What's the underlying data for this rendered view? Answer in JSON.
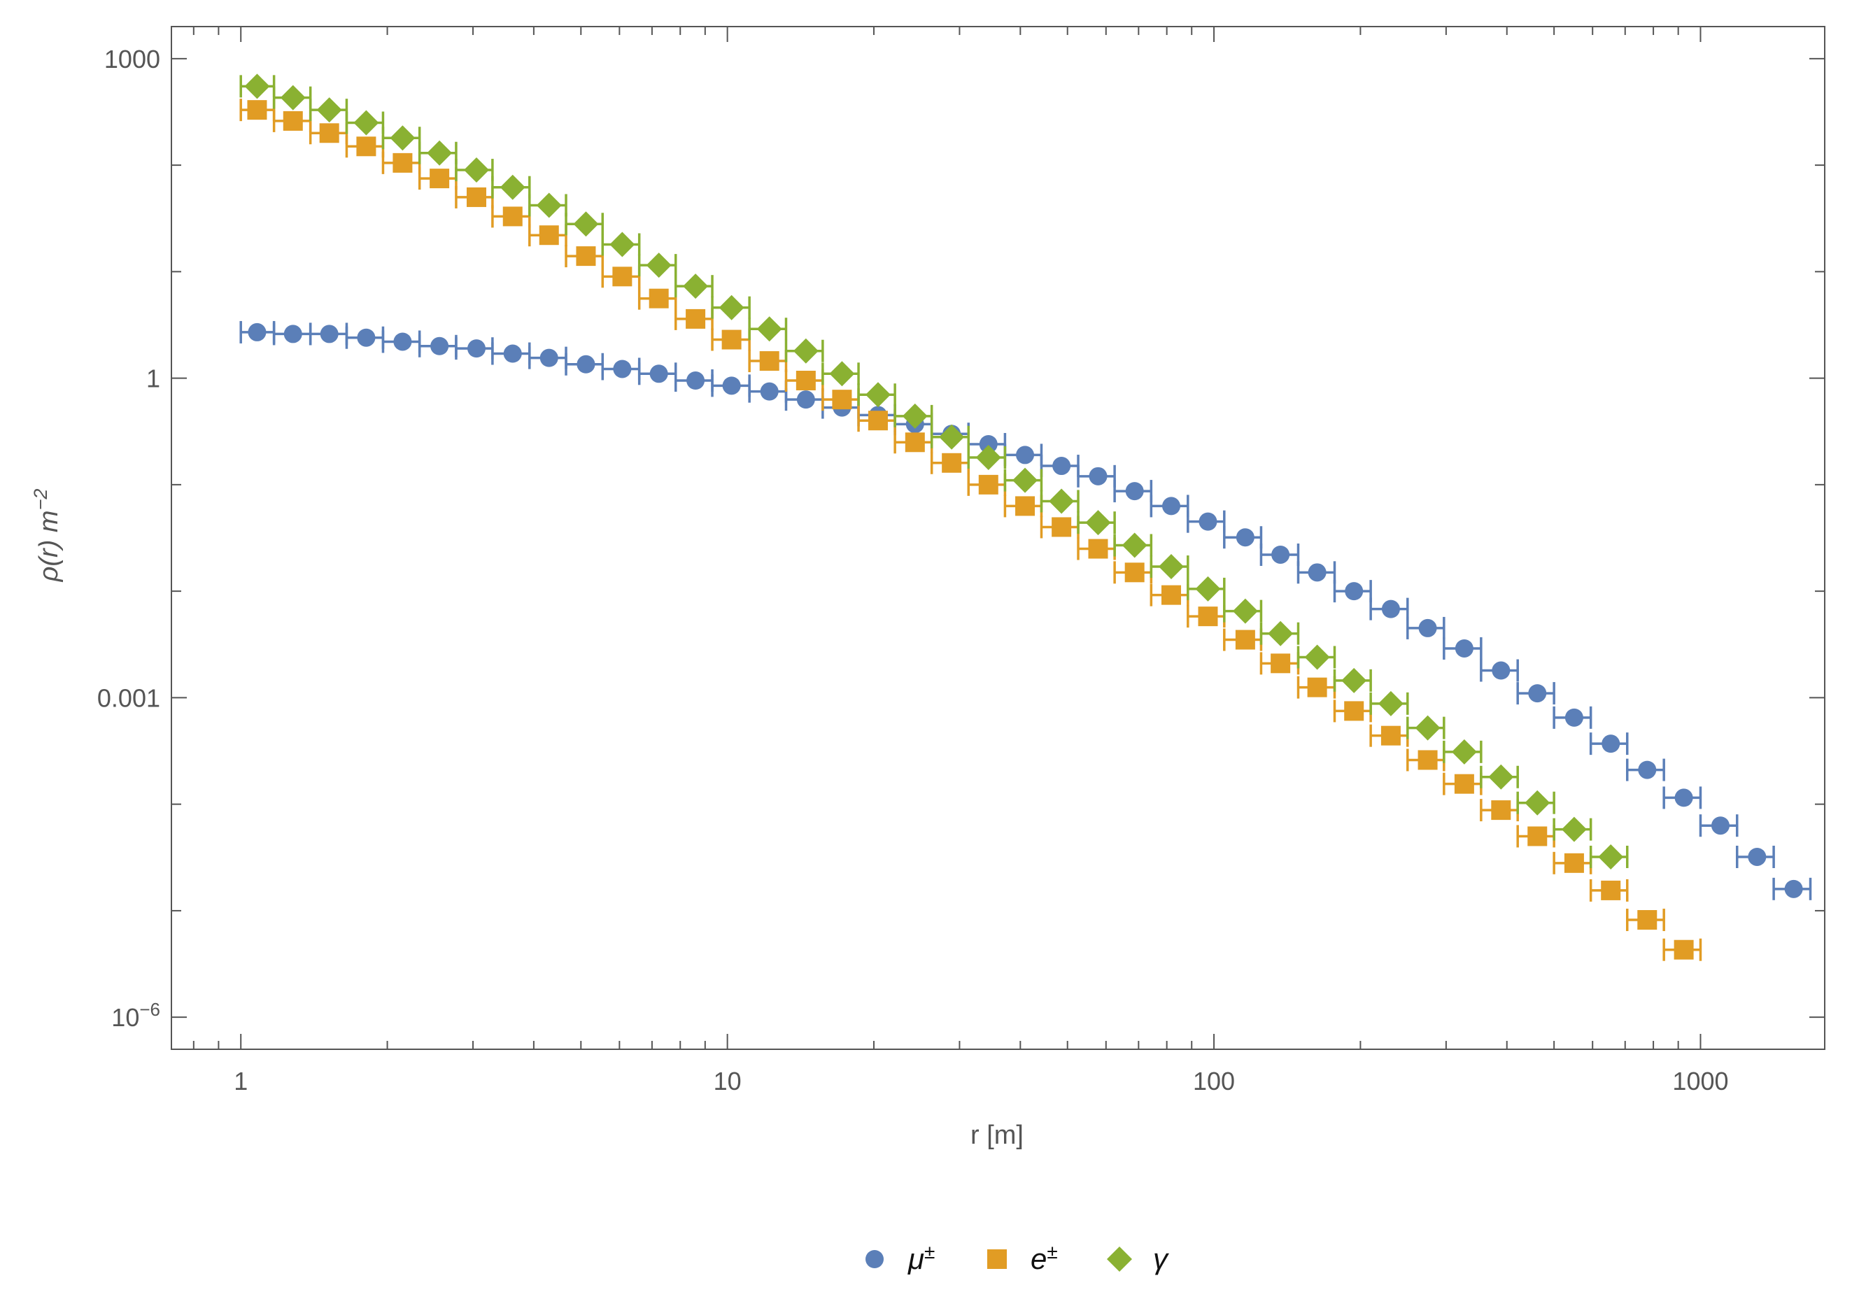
{
  "chart_data": {
    "type": "scatter",
    "x_scale": "log",
    "y_scale": "log",
    "xlabel": "r [m]",
    "ylabel": {
      "base": "ρ(r) m",
      "exponent": "−2"
    },
    "xlim": [
      0.72,
      1800
    ],
    "ylim": [
      5e-07,
      2000
    ],
    "x_ticks": [
      {
        "value": 1,
        "label": "1"
      },
      {
        "value": 10,
        "label": "10"
      },
      {
        "value": 100,
        "label": "100"
      },
      {
        "value": 1000,
        "label": "1000"
      }
    ],
    "y_ticks": [
      {
        "value": 1e-06,
        "label": "10",
        "exponent": "−6"
      },
      {
        "value": 0.001,
        "label": "0.001"
      },
      {
        "value": 1,
        "label": "1"
      },
      {
        "value": 1000,
        "label": "1000"
      }
    ],
    "grid": false,
    "legend_position": "bottom-center",
    "series": [
      {
        "name": "μ",
        "name_superscript": "±",
        "marker": "circle",
        "color": "#5b7fb8",
        "points": [
          [
            1.08,
            2.7,
            1.0,
            1.17
          ],
          [
            1.28,
            2.6,
            1.17,
            1.39
          ],
          [
            1.52,
            2.6,
            1.39,
            1.65
          ],
          [
            1.81,
            2.4,
            1.65,
            1.96
          ],
          [
            2.15,
            2.2,
            1.96,
            2.33
          ],
          [
            2.56,
            2.0,
            2.33,
            2.77
          ],
          [
            3.05,
            1.9,
            2.77,
            3.29
          ],
          [
            3.62,
            1.7,
            3.29,
            3.92
          ],
          [
            4.3,
            1.55,
            3.92,
            4.66
          ],
          [
            5.12,
            1.35,
            4.66,
            5.54
          ],
          [
            6.08,
            1.22,
            5.54,
            6.59
          ],
          [
            7.23,
            1.1,
            6.59,
            7.83
          ],
          [
            8.6,
            0.95,
            7.83,
            9.31
          ],
          [
            10.2,
            0.85,
            9.31,
            11.1
          ],
          [
            12.2,
            0.75,
            11.1,
            13.2
          ],
          [
            14.5,
            0.63,
            13.2,
            15.7
          ],
          [
            17.2,
            0.53,
            15.7,
            18.6
          ],
          [
            20.4,
            0.45,
            18.6,
            22.1
          ],
          [
            24.3,
            0.37,
            22.1,
            26.3
          ],
          [
            28.9,
            0.3,
            26.3,
            31.3
          ],
          [
            34.4,
            0.24,
            31.3,
            37.2
          ],
          [
            40.9,
            0.19,
            37.2,
            44.2
          ],
          [
            48.6,
            0.15,
            44.2,
            52.6
          ],
          [
            57.8,
            0.12,
            52.6,
            62.5
          ],
          [
            68.7,
            0.087,
            62.5,
            74.3
          ],
          [
            81.7,
            0.063,
            74.3,
            88.4
          ],
          [
            97.2,
            0.045,
            88.4,
            105
          ],
          [
            116,
            0.032,
            105,
            125
          ],
          [
            137,
            0.022,
            125,
            149
          ],
          [
            163,
            0.015,
            149,
            177
          ],
          [
            194,
            0.01,
            177,
            210
          ],
          [
            231,
            0.0068,
            210,
            250
          ],
          [
            275,
            0.0045,
            250,
            297
          ],
          [
            327,
            0.0029,
            297,
            354
          ],
          [
            389,
            0.0018,
            354,
            421
          ],
          [
            462,
            0.0011,
            421,
            500
          ],
          [
            550,
            0.00065,
            500,
            595
          ],
          [
            654,
            0.00037,
            595,
            707
          ],
          [
            777,
            0.00021,
            707,
            841
          ],
          [
            924,
            0.000115,
            841,
            1000
          ],
          [
            1099,
            6.3e-05,
            1000,
            1189
          ],
          [
            1307,
            3.2e-05,
            1189,
            1414
          ],
          [
            1554,
            1.6e-05,
            1414,
            1682
          ]
        ]
      },
      {
        "name": "e",
        "name_superscript": "±",
        "marker": "square",
        "color": "#e19c24",
        "points": [
          [
            1.08,
            330,
            1.0,
            1.17
          ],
          [
            1.28,
            260,
            1.17,
            1.39
          ],
          [
            1.52,
            200,
            1.39,
            1.65
          ],
          [
            1.81,
            150,
            1.65,
            1.96
          ],
          [
            2.15,
            105,
            1.96,
            2.33
          ],
          [
            2.56,
            75,
            2.33,
            2.77
          ],
          [
            3.05,
            50,
            2.77,
            3.29
          ],
          [
            3.62,
            33,
            3.29,
            3.92
          ],
          [
            4.3,
            22,
            3.92,
            4.66
          ],
          [
            5.12,
            14,
            4.66,
            5.54
          ],
          [
            6.08,
            9.0,
            5.54,
            6.59
          ],
          [
            7.23,
            5.6,
            6.59,
            7.83
          ],
          [
            8.6,
            3.6,
            7.83,
            9.31
          ],
          [
            10.2,
            2.3,
            9.31,
            11.1
          ],
          [
            12.2,
            1.45,
            11.1,
            13.2
          ],
          [
            14.5,
            0.95,
            13.2,
            15.7
          ],
          [
            17.2,
            0.63,
            15.7,
            18.6
          ],
          [
            20.4,
            0.4,
            18.6,
            22.1
          ],
          [
            24.3,
            0.25,
            22.1,
            26.3
          ],
          [
            28.9,
            0.16,
            26.3,
            31.3
          ],
          [
            34.4,
            0.1,
            31.3,
            37.2
          ],
          [
            40.9,
            0.063,
            37.2,
            44.2
          ],
          [
            48.6,
            0.04,
            44.2,
            52.6
          ],
          [
            57.8,
            0.025,
            52.6,
            62.5
          ],
          [
            68.7,
            0.015,
            62.5,
            74.3
          ],
          [
            81.7,
            0.0092,
            74.3,
            88.4
          ],
          [
            97.2,
            0.0058,
            88.4,
            105
          ],
          [
            116,
            0.0035,
            105,
            125
          ],
          [
            137,
            0.0021,
            125,
            149
          ],
          [
            163,
            0.00125,
            149,
            177
          ],
          [
            194,
            0.00075,
            177,
            210
          ],
          [
            231,
            0.00044,
            210,
            250
          ],
          [
            275,
            0.00026,
            250,
            297
          ],
          [
            327,
            0.000155,
            297,
            354
          ],
          [
            389,
            8.8e-05,
            354,
            421
          ],
          [
            462,
            5e-05,
            421,
            500
          ],
          [
            550,
            2.8e-05,
            500,
            595
          ],
          [
            654,
            1.55e-05,
            595,
            707
          ],
          [
            777,
            8.2e-06,
            707,
            841
          ],
          [
            924,
            4.3e-06,
            841,
            1000
          ]
        ]
      },
      {
        "name": "γ",
        "name_superscript": "",
        "marker": "diamond",
        "color": "#8ab132",
        "points": [
          [
            1.08,
            550,
            1.0,
            1.17
          ],
          [
            1.28,
            430,
            1.17,
            1.39
          ],
          [
            1.52,
            330,
            1.39,
            1.65
          ],
          [
            1.81,
            250,
            1.65,
            1.96
          ],
          [
            2.15,
            180,
            1.96,
            2.33
          ],
          [
            2.56,
            130,
            2.33,
            2.77
          ],
          [
            3.05,
            90,
            2.77,
            3.29
          ],
          [
            3.62,
            62,
            3.29,
            3.92
          ],
          [
            4.3,
            42,
            3.92,
            4.66
          ],
          [
            5.12,
            28,
            4.66,
            5.54
          ],
          [
            6.08,
            18,
            5.54,
            6.59
          ],
          [
            7.23,
            11.5,
            6.59,
            7.83
          ],
          [
            8.6,
            7.3,
            7.83,
            9.31
          ],
          [
            10.2,
            4.6,
            9.31,
            11.1
          ],
          [
            12.2,
            2.9,
            11.1,
            13.2
          ],
          [
            14.5,
            1.8,
            13.2,
            15.7
          ],
          [
            17.2,
            1.1,
            15.7,
            18.6
          ],
          [
            20.4,
            0.7,
            18.6,
            22.1
          ],
          [
            24.3,
            0.44,
            22.1,
            26.3
          ],
          [
            28.9,
            0.28,
            26.3,
            31.3
          ],
          [
            34.4,
            0.18,
            31.3,
            37.2
          ],
          [
            40.9,
            0.11,
            37.2,
            44.2
          ],
          [
            48.6,
            0.07,
            44.2,
            52.6
          ],
          [
            57.8,
            0.044,
            52.6,
            62.5
          ],
          [
            68.7,
            0.027,
            62.5,
            74.3
          ],
          [
            81.7,
            0.017,
            74.3,
            88.4
          ],
          [
            97.2,
            0.0105,
            88.4,
            105
          ],
          [
            116,
            0.0065,
            105,
            125
          ],
          [
            137,
            0.004,
            125,
            149
          ],
          [
            163,
            0.0024,
            149,
            177
          ],
          [
            194,
            0.00145,
            177,
            210
          ],
          [
            231,
            0.00088,
            210,
            250
          ],
          [
            275,
            0.00052,
            250,
            297
          ],
          [
            327,
            0.00031,
            297,
            354
          ],
          [
            389,
            0.00018,
            354,
            421
          ],
          [
            462,
            0.000103,
            421,
            500
          ],
          [
            550,
            5.8e-05,
            500,
            595
          ],
          [
            654,
            3.2e-05,
            595,
            707
          ]
        ]
      }
    ]
  }
}
